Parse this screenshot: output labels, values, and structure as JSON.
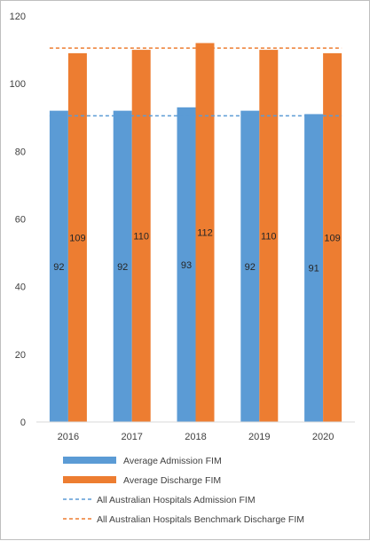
{
  "chart_data": {
    "type": "bar",
    "title": "",
    "xlabel": "",
    "ylabel": "",
    "ylim": [
      0,
      120
    ],
    "yticks": [
      0,
      20,
      40,
      60,
      80,
      100,
      120
    ],
    "grid": false,
    "legend_position": "bottom",
    "categories": [
      "2016",
      "2017",
      "2018",
      "2019",
      "2020"
    ],
    "series": [
      {
        "name": "Average Admission FIM",
        "kind": "bar",
        "color": "#5b9bd5",
        "values": [
          92,
          92,
          93,
          92,
          91
        ]
      },
      {
        "name": "Average Discharge FIM",
        "kind": "bar",
        "color": "#ed7d31",
        "values": [
          109,
          110,
          112,
          110,
          109
        ]
      },
      {
        "name": "All Australian Hospitals Admission FIM",
        "kind": "dashed-line",
        "color": "#5b9bd5",
        "values": [
          90.5,
          90.5,
          90.5,
          90.5,
          90.5
        ]
      },
      {
        "name": "All Australian Hospitals Benchmark Discharge FIM",
        "kind": "dashed-line",
        "color": "#ed7d31",
        "values": [
          110.5,
          110.5,
          110.5,
          110.5,
          110.5
        ]
      }
    ]
  }
}
